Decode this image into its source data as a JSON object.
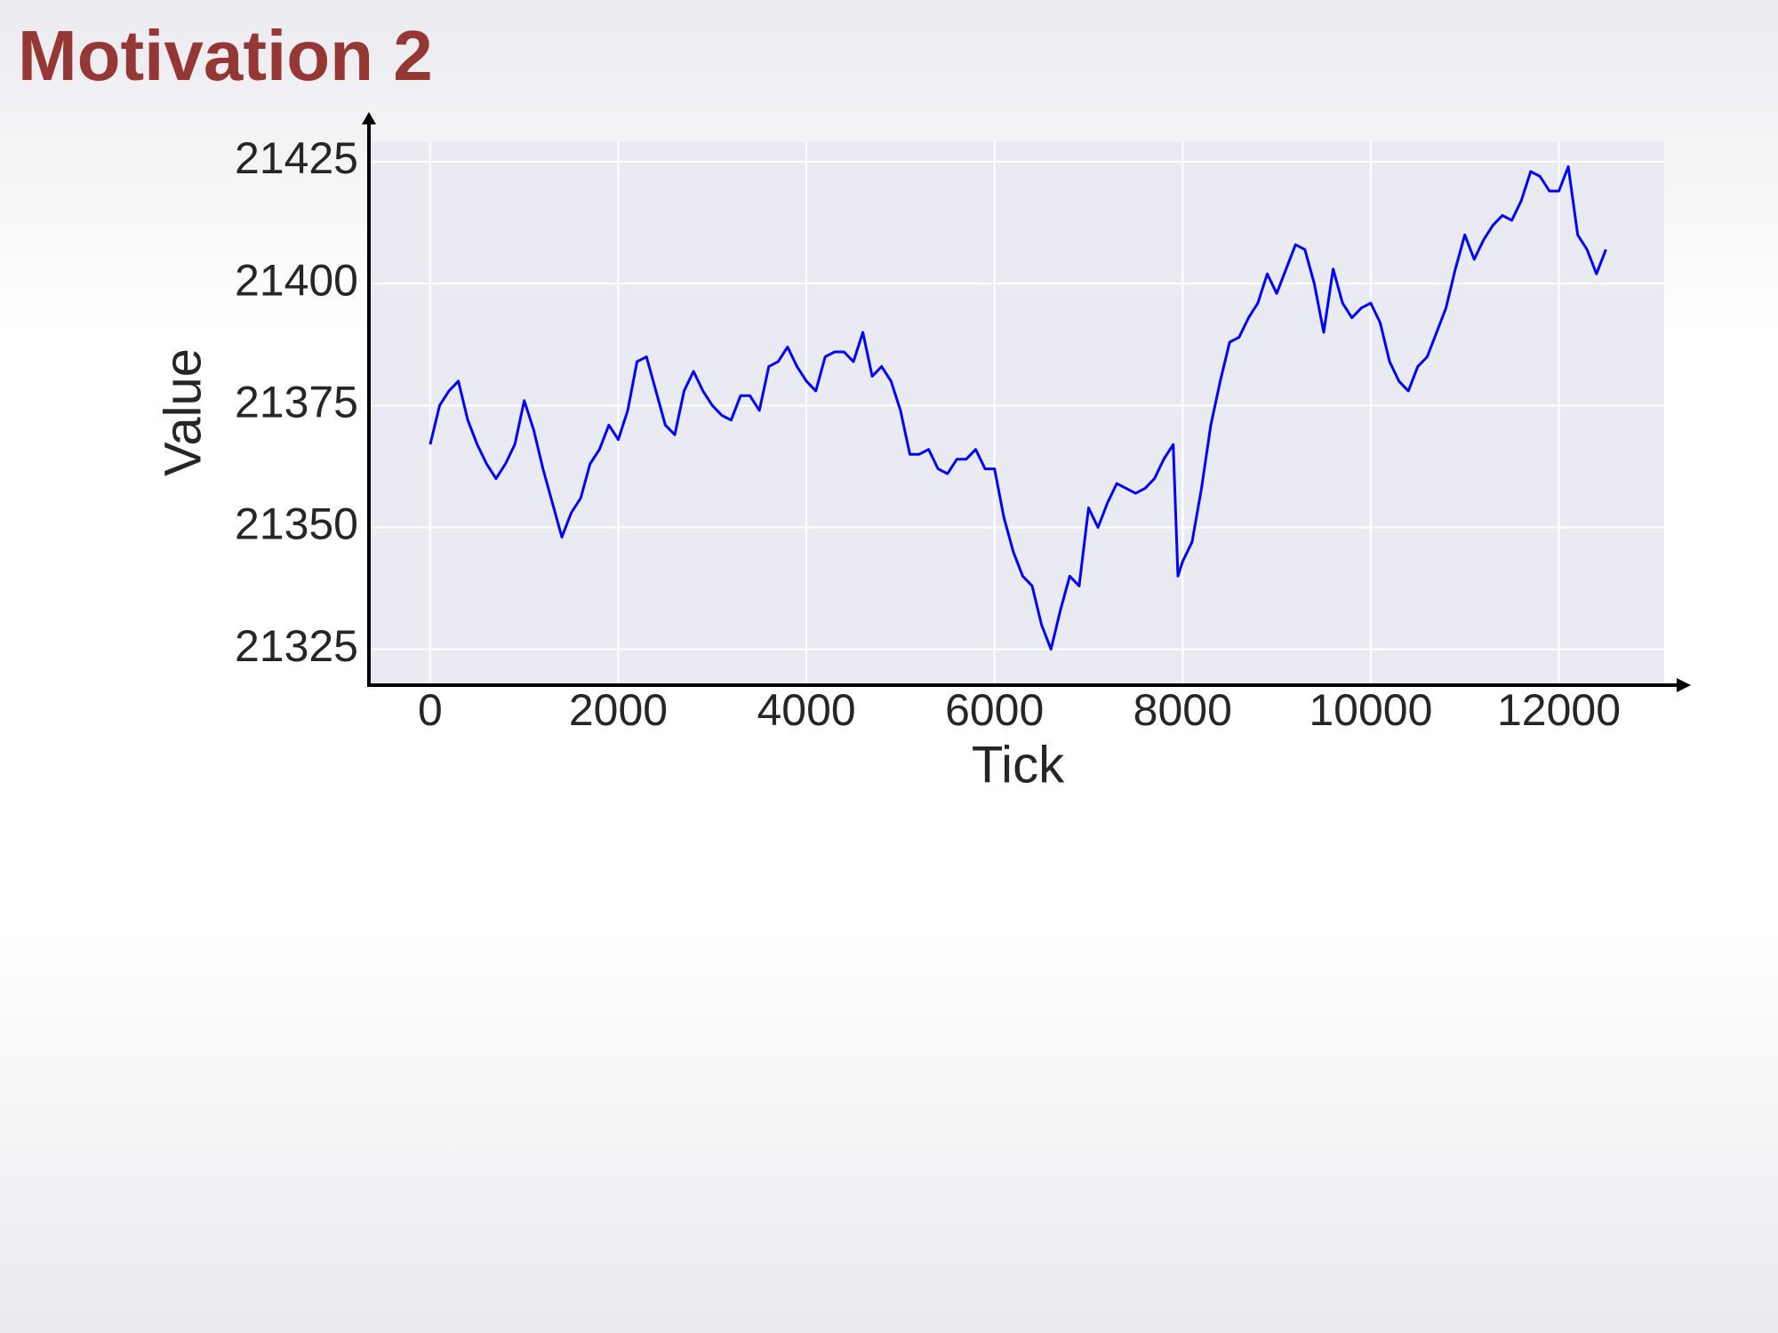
{
  "chart_data": {
    "type": "line",
    "title": "Motivation 2",
    "x_label": "Tick",
    "y_label": "Value",
    "x": [
      0,
      100,
      200,
      300,
      400,
      500,
      600,
      700,
      800,
      900,
      1000,
      1100,
      1200,
      1300,
      1400,
      1500,
      1600,
      1700,
      1800,
      1900,
      2000,
      2100,
      2200,
      2300,
      2400,
      2500,
      2600,
      2700,
      2800,
      2900,
      3000,
      3100,
      3200,
      3300,
      3400,
      3500,
      3600,
      3700,
      3800,
      3900,
      4000,
      4100,
      4200,
      4300,
      4400,
      4500,
      4600,
      4700,
      4800,
      4900,
      5000,
      5100,
      5200,
      5300,
      5400,
      5500,
      5600,
      5700,
      5800,
      5900,
      6000,
      6100,
      6200,
      6300,
      6400,
      6500,
      6600,
      6700,
      6800,
      6900,
      7000,
      7100,
      7200,
      7300,
      7400,
      7500,
      7600,
      7700,
      7800,
      7900,
      7950,
      8000,
      8100,
      8200,
      8300,
      8400,
      8500,
      8600,
      8700,
      8800,
      8900,
      9000,
      9100,
      9200,
      9300,
      9400,
      9500,
      9600,
      9700,
      9800,
      9900,
      10000,
      10100,
      10200,
      10300,
      10400,
      10500,
      10600,
      10700,
      10800,
      10900,
      11000,
      11100,
      11200,
      11300,
      11400,
      11500,
      11600,
      11700,
      11800,
      11900,
      12000,
      12100,
      12200,
      12300,
      12400,
      12500
    ],
    "values": [
      21367,
      21375,
      21378,
      21380,
      21372,
      21367,
      21363,
      21360,
      21363,
      21367,
      21376,
      21370,
      21362,
      21355,
      21348,
      21353,
      21356,
      21363,
      21366,
      21371,
      21368,
      21374,
      21384,
      21385,
      21378,
      21371,
      21369,
      21378,
      21382,
      21378,
      21375,
      21373,
      21372,
      21377,
      21377,
      21374,
      21383,
      21384,
      21387,
      21383,
      21380,
      21378,
      21385,
      21386,
      21386,
      21384,
      21390,
      21381,
      21383,
      21380,
      21374,
      21365,
      21365,
      21366,
      21362,
      21361,
      21364,
      21364,
      21366,
      21362,
      21362,
      21352,
      21345,
      21340,
      21338,
      21330,
      21325,
      21333,
      21340,
      21338,
      21354,
      21350,
      21355,
      21359,
      21358,
      21357,
      21358,
      21360,
      21364,
      21367,
      21340,
      21343,
      21347,
      21358,
      21371,
      21380,
      21388,
      21389,
      21393,
      21396,
      21402,
      21398,
      21403,
      21408,
      21407,
      21400,
      21390,
      21403,
      21396,
      21393,
      21395,
      21396,
      21392,
      21384,
      21380,
      21378,
      21383,
      21385,
      21390,
      21395,
      21403,
      21410,
      21405,
      21409,
      21412,
      21414,
      21413,
      21417,
      21423,
      21422,
      21419,
      21419,
      21424,
      21410,
      21407,
      21402,
      21407
    ],
    "color": "#0000ff",
    "xlim": [
      -651,
      13120
    ],
    "ylim": [
      21318,
      21429.2
    ],
    "xticks": [
      0,
      2000,
      4000,
      6000,
      8000,
      10000,
      12000
    ],
    "yticks": [
      21325,
      21350,
      21375,
      21400,
      21425
    ],
    "grid": true
  }
}
